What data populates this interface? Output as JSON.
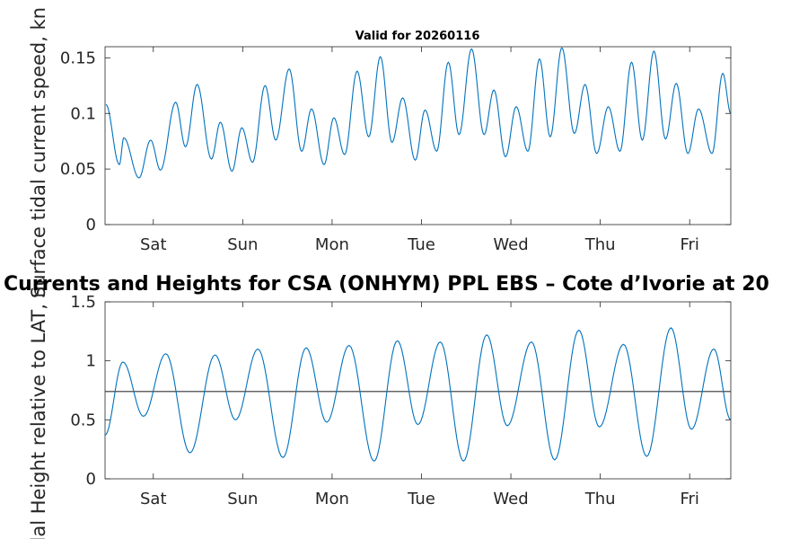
{
  "colors": {
    "line": "#0072bd",
    "ref": "#333333",
    "axis": "#262626"
  },
  "chart_data": [
    {
      "type": "line",
      "title": "Valid for 20260116",
      "ylabel": "Surface tidal current speed, kn",
      "ylim": [
        0,
        0.16
      ],
      "xlim": [
        0,
        7
      ],
      "yticks": [
        "0",
        "0.05",
        "0.1",
        "0.15"
      ],
      "ytick_values": [
        0,
        0.05,
        0.1,
        0.15
      ],
      "xticks": [
        "Sat",
        "Sun",
        "Mon",
        "Tue",
        "Wed",
        "Thu",
        "Fri"
      ],
      "xtick_values": [
        0.54,
        1.54,
        2.54,
        3.54,
        4.54,
        5.54,
        6.54
      ],
      "series": [
        {
          "name": "current speed",
          "peaks": [
            [
              0.01,
              0.108
            ],
            [
              0.16,
              0.054
            ],
            [
              0.21,
              0.078
            ],
            [
              0.38,
              0.042
            ],
            [
              0.51,
              0.076
            ],
            [
              0.62,
              0.049
            ],
            [
              0.79,
              0.11
            ],
            [
              0.9,
              0.07
            ],
            [
              1.03,
              0.126
            ],
            [
              1.19,
              0.059
            ],
            [
              1.29,
              0.092
            ],
            [
              1.42,
              0.048
            ],
            [
              1.53,
              0.087
            ],
            [
              1.65,
              0.056
            ],
            [
              1.79,
              0.125
            ],
            [
              1.91,
              0.076
            ],
            [
              2.06,
              0.14
            ],
            [
              2.2,
              0.066
            ],
            [
              2.31,
              0.104
            ],
            [
              2.45,
              0.054
            ],
            [
              2.56,
              0.096
            ],
            [
              2.68,
              0.063
            ],
            [
              2.82,
              0.138
            ],
            [
              2.95,
              0.079
            ],
            [
              3.08,
              0.151
            ],
            [
              3.21,
              0.074
            ],
            [
              3.33,
              0.114
            ],
            [
              3.47,
              0.058
            ],
            [
              3.58,
              0.103
            ],
            [
              3.71,
              0.066
            ],
            [
              3.84,
              0.146
            ],
            [
              3.96,
              0.081
            ],
            [
              4.1,
              0.158
            ],
            [
              4.24,
              0.081
            ],
            [
              4.35,
              0.121
            ],
            [
              4.48,
              0.061
            ],
            [
              4.6,
              0.106
            ],
            [
              4.73,
              0.066
            ],
            [
              4.86,
              0.149
            ],
            [
              4.98,
              0.079
            ],
            [
              5.11,
              0.159
            ],
            [
              5.25,
              0.082
            ],
            [
              5.37,
              0.126
            ],
            [
              5.5,
              0.064
            ],
            [
              5.63,
              0.106
            ],
            [
              5.76,
              0.066
            ],
            [
              5.89,
              0.146
            ],
            [
              6.01,
              0.076
            ],
            [
              6.14,
              0.156
            ],
            [
              6.27,
              0.077
            ],
            [
              6.39,
              0.127
            ],
            [
              6.52,
              0.064
            ],
            [
              6.64,
              0.104
            ],
            [
              6.79,
              0.064
            ],
            [
              6.91,
              0.136
            ],
            [
              7.0,
              0.1
            ]
          ]
        }
      ]
    },
    {
      "type": "line",
      "title": "Currents and Heights for CSA (ONHYM) PPL EBS  – Cote d’Ivorie at 20",
      "ylabel": "Tidal Height relative to LAT, m",
      "ylim": [
        0,
        1.5
      ],
      "xlim": [
        0,
        7
      ],
      "yticks": [
        "0",
        "0.5",
        "1",
        "1.5"
      ],
      "ytick_values": [
        0,
        0.5,
        1,
        1.5
      ],
      "xticks": [
        "Sat",
        "Sun",
        "Mon",
        "Tue",
        "Wed",
        "Thu",
        "Fri"
      ],
      "xtick_values": [
        0.54,
        1.54,
        2.54,
        3.54,
        4.54,
        5.54,
        6.54
      ],
      "reference_line": 0.74,
      "series": [
        {
          "name": "tidal height",
          "peaks": [
            [
              0.0,
              0.37
            ],
            [
              0.2,
              0.99
            ],
            [
              0.43,
              0.53
            ],
            [
              0.68,
              1.06
            ],
            [
              0.95,
              0.22
            ],
            [
              1.23,
              1.05
            ],
            [
              1.46,
              0.5
            ],
            [
              1.71,
              1.1
            ],
            [
              1.99,
              0.18
            ],
            [
              2.25,
              1.11
            ],
            [
              2.48,
              0.48
            ],
            [
              2.73,
              1.13
            ],
            [
              3.01,
              0.15
            ],
            [
              3.27,
              1.17
            ],
            [
              3.5,
              0.46
            ],
            [
              3.75,
              1.16
            ],
            [
              4.01,
              0.15
            ],
            [
              4.27,
              1.22
            ],
            [
              4.5,
              0.45
            ],
            [
              4.77,
              1.16
            ],
            [
              5.03,
              0.16
            ],
            [
              5.3,
              1.26
            ],
            [
              5.53,
              0.44
            ],
            [
              5.8,
              1.14
            ],
            [
              6.06,
              0.19
            ],
            [
              6.33,
              1.28
            ],
            [
              6.56,
              0.42
            ],
            [
              6.81,
              1.1
            ],
            [
              7.0,
              0.5
            ]
          ]
        }
      ]
    }
  ]
}
